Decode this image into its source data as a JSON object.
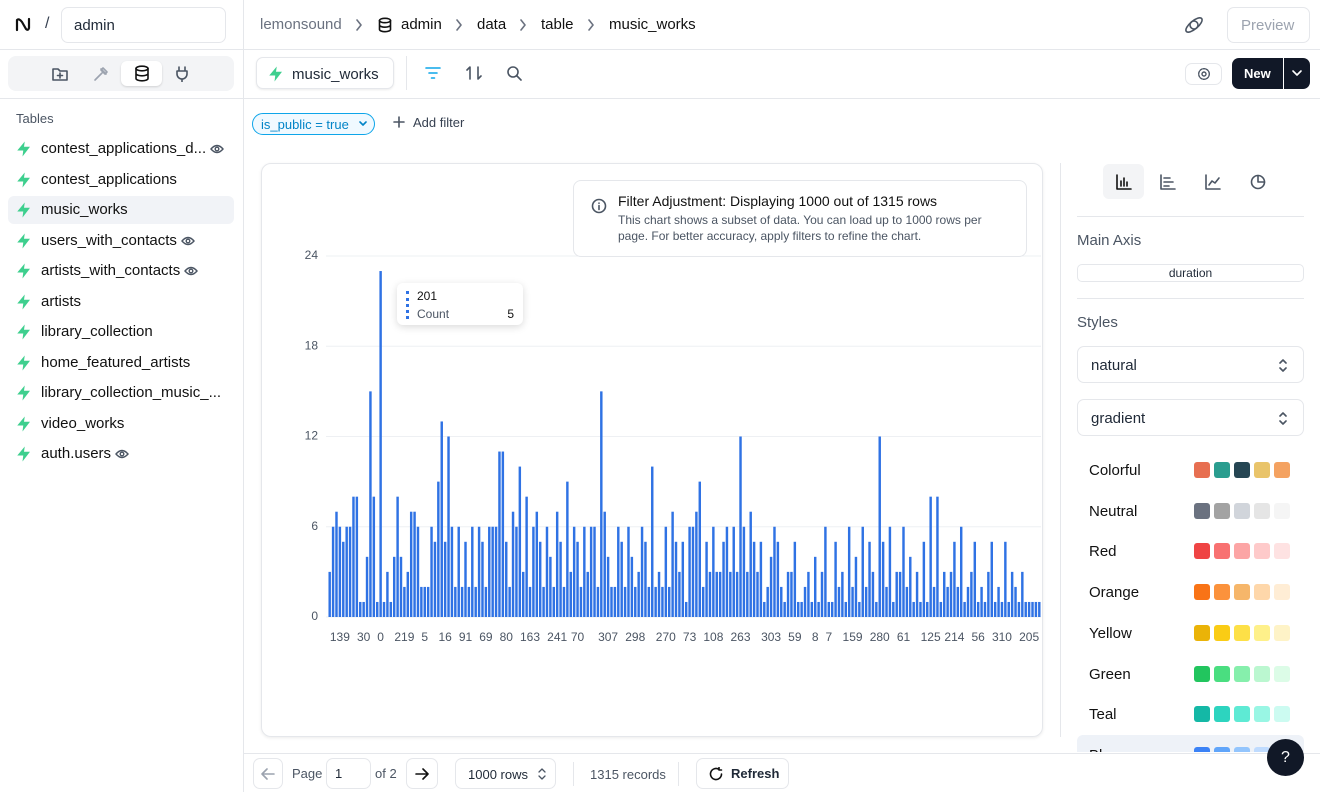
{
  "topbar": {
    "project": "admin",
    "breadcrumb": [
      "lemonsound",
      "admin",
      "data",
      "table",
      "music_works"
    ],
    "preview": "Preview"
  },
  "toolbar": {
    "tab": "music_works",
    "new": "New"
  },
  "sidebar": {
    "heading": "Tables",
    "selected": 2,
    "tables": [
      {
        "name": "contest_applications_d...",
        "view": true
      },
      {
        "name": "contest_applications",
        "view": false
      },
      {
        "name": "music_works",
        "view": false
      },
      {
        "name": "users_with_contacts",
        "view": true
      },
      {
        "name": "artists_with_contacts",
        "view": true
      },
      {
        "name": "artists",
        "view": false
      },
      {
        "name": "library_collection",
        "view": false
      },
      {
        "name": "home_featured_artists",
        "view": false
      },
      {
        "name": "library_collection_music_...",
        "view": false
      },
      {
        "name": "video_works",
        "view": false
      },
      {
        "name": "auth.users",
        "view": true
      }
    ]
  },
  "filter": {
    "chip": "is_public = true",
    "add": "Add filter"
  },
  "notice": {
    "title": "Filter Adjustment: Displaying 1000 out of 1315 rows",
    "text": "This chart shows a subset of data. You can load up to 1000 rows per page. For better accuracy, apply filters to refine the chart."
  },
  "chart_data": {
    "type": "bar",
    "color": "#2f72e4",
    "grid": true,
    "ylim": [
      0,
      24
    ],
    "yticks": [
      0,
      6,
      12,
      18,
      24
    ],
    "categories": [
      null,
      null,
      null,
      "139",
      null,
      null,
      null,
      null,
      null,
      null,
      "30",
      null,
      null,
      null,
      null,
      "0",
      null,
      null,
      null,
      null,
      null,
      null,
      "219",
      null,
      null,
      null,
      null,
      null,
      "5",
      null,
      null,
      null,
      null,
      null,
      "16",
      null,
      null,
      null,
      null,
      null,
      "91",
      null,
      null,
      null,
      null,
      null,
      "69",
      null,
      null,
      null,
      null,
      null,
      "80",
      null,
      null,
      null,
      null,
      null,
      null,
      "163",
      null,
      null,
      null,
      null,
      null,
      null,
      null,
      "241",
      null,
      null,
      null,
      null,
      null,
      "70",
      null,
      null,
      null,
      null,
      null,
      null,
      null,
      null,
      "307",
      null,
      null,
      null,
      null,
      null,
      null,
      null,
      "298",
      null,
      null,
      null,
      null,
      null,
      null,
      null,
      null,
      "270",
      null,
      null,
      null,
      null,
      null,
      null,
      "73",
      null,
      null,
      null,
      null,
      null,
      null,
      "108",
      null,
      null,
      null,
      null,
      null,
      null,
      null,
      "263",
      null,
      null,
      null,
      null,
      null,
      null,
      null,
      null,
      "303",
      null,
      null,
      null,
      null,
      null,
      null,
      "59",
      null,
      null,
      null,
      null,
      null,
      "8",
      null,
      null,
      null,
      "7",
      null,
      null,
      null,
      null,
      null,
      null,
      "159",
      null,
      null,
      null,
      null,
      null,
      null,
      null,
      "280",
      null,
      null,
      null,
      null,
      null,
      null,
      "61",
      null,
      null,
      null,
      null,
      null,
      null,
      null,
      "125",
      null,
      null,
      null,
      null,
      null,
      null,
      "214",
      null,
      null,
      null,
      null,
      null,
      null,
      "56",
      null,
      null,
      null,
      null,
      null,
      null,
      "310",
      null,
      null,
      null,
      null,
      null,
      null,
      null,
      "205",
      null,
      null,
      null
    ],
    "values": [
      3,
      6,
      7,
      6,
      5,
      6,
      6,
      8,
      8,
      1,
      1,
      4,
      15,
      8,
      1,
      23,
      1,
      3,
      1,
      4,
      8,
      4,
      2,
      3,
      7,
      7,
      6,
      2,
      2,
      2,
      6,
      5,
      9,
      13,
      5,
      12,
      6,
      2,
      6,
      2,
      5,
      2,
      6,
      2,
      6,
      5,
      2,
      6,
      6,
      6,
      11,
      11,
      5,
      2,
      7,
      6,
      10,
      3,
      8,
      2,
      6,
      7,
      5,
      2,
      6,
      4,
      2,
      7,
      5,
      2,
      9,
      3,
      6,
      5,
      2,
      6,
      3,
      6,
      6,
      2,
      15,
      7,
      4,
      2,
      2,
      6,
      5,
      2,
      6,
      4,
      2,
      3,
      6,
      5,
      2,
      10,
      2,
      3,
      2,
      6,
      2,
      7,
      5,
      3,
      5,
      1,
      6,
      6,
      7,
      9,
      2,
      5,
      3,
      6,
      3,
      3,
      5,
      6,
      3,
      6,
      3,
      12,
      6,
      3,
      7,
      5,
      3,
      5,
      1,
      2,
      4,
      6,
      5,
      2,
      1,
      3,
      3,
      5,
      1,
      1,
      2,
      3,
      1,
      4,
      1,
      3,
      6,
      1,
      1,
      5,
      2,
      3,
      1,
      6,
      2,
      4,
      1,
      6,
      2,
      5,
      3,
      1,
      12,
      5,
      2,
      6,
      1,
      3,
      3,
      6,
      2,
      4,
      1,
      3,
      1,
      5,
      1,
      8,
      2,
      8,
      1,
      3,
      2,
      3,
      5,
      2,
      6,
      1,
      2,
      3,
      5,
      1,
      2,
      1,
      3,
      5,
      1,
      2,
      1,
      5,
      1,
      3,
      2,
      1,
      3,
      1,
      1,
      1,
      1,
      1
    ],
    "tooltip": {
      "category": "201",
      "label": "Count",
      "value": 5
    }
  },
  "panel": {
    "main_axis": "Main Axis",
    "axis_field": "duration",
    "styles": "Styles",
    "curve": "natural",
    "fill": "gradient",
    "palettes": [
      {
        "name": "Colorful",
        "colors": [
          "#e76f51",
          "#2a9d8f",
          "#264653",
          "#e9c46a",
          "#f4a261"
        ]
      },
      {
        "name": "Neutral",
        "colors": [
          "#6b7280",
          "#a3a3a3",
          "#d1d5db",
          "#e5e5e5",
          "#f5f5f5"
        ]
      },
      {
        "name": "Red",
        "colors": [
          "#ef4444",
          "#f87171",
          "#fca5a5",
          "#fecaca",
          "#fee2e2"
        ]
      },
      {
        "name": "Orange",
        "colors": [
          "#f97316",
          "#fb923c",
          "#f6b66a",
          "#fed7aa",
          "#ffedd5"
        ]
      },
      {
        "name": "Yellow",
        "colors": [
          "#eab308",
          "#facc15",
          "#fde047",
          "#fef08a",
          "#fef3c7"
        ]
      },
      {
        "name": "Green",
        "colors": [
          "#22c55e",
          "#4ade80",
          "#86efac",
          "#bbf7d0",
          "#dcfce7"
        ]
      },
      {
        "name": "Teal",
        "colors": [
          "#14b8a6",
          "#2dd4bf",
          "#5eead4",
          "#99f6e4",
          "#ccfbf1"
        ]
      },
      {
        "name": "Blue",
        "colors": [
          "#3b82f6",
          "#60a5fa",
          "#93c5fd",
          "#bfdbfe",
          "#dbeafe"
        ]
      }
    ]
  },
  "pagination": {
    "page_label": "Page",
    "page": 1,
    "of": "of 2",
    "rows": "1000 rows",
    "records": "1315 records",
    "refresh": "Refresh"
  },
  "help": "?"
}
